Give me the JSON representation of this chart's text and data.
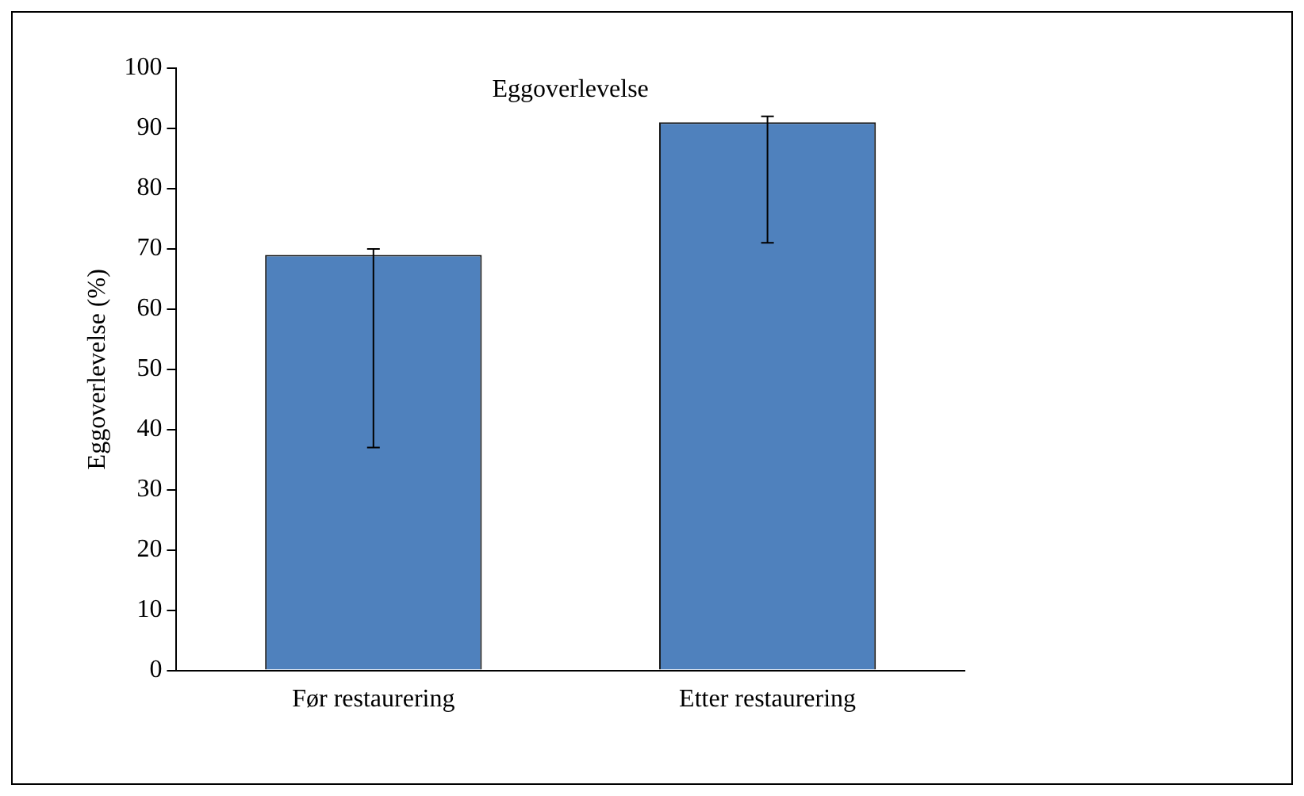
{
  "chart_data": {
    "type": "bar",
    "title": "Eggoverlevelse",
    "ylabel": "Eggoverlevelse (%)",
    "categories": [
      "Før restaurering",
      "Etter restaurering"
    ],
    "values": [
      69,
      91
    ],
    "color": "#4f81bd",
    "errors": [
      [
        37,
        70
      ],
      [
        71,
        92
      ]
    ],
    "ylim": [
      0,
      100
    ],
    "yticks": [
      0,
      10,
      20,
      30,
      40,
      50,
      60,
      70,
      80,
      90,
      100
    ],
    "grid": false,
    "legend": false
  }
}
